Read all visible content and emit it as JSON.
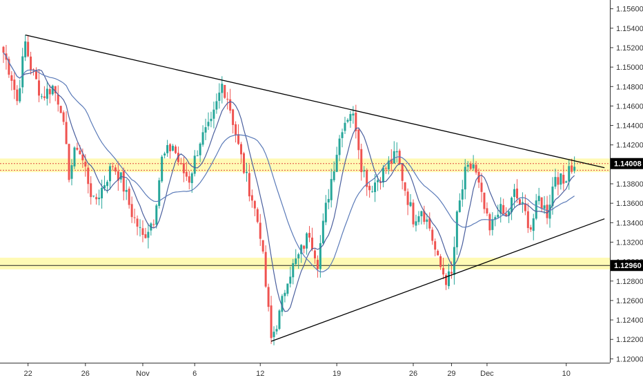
{
  "chart_data": {
    "type": "candlestick",
    "title": "",
    "xlabel": "",
    "ylabel": "",
    "ylim": [
      1.1196,
      1.1569
    ],
    "y_ticks": [
      "1.15600",
      "1.15400",
      "1.15200",
      "1.15000",
      "1.14800",
      "1.14600",
      "1.14400",
      "1.14200",
      "1.14000",
      "1.13800",
      "1.13600",
      "1.13400",
      "1.13200",
      "1.13000",
      "1.12800",
      "1.12600",
      "1.12400",
      "1.12200",
      "1.12000"
    ],
    "x_ticks": [
      {
        "label": "22",
        "index": 9
      },
      {
        "label": "26",
        "index": 30
      },
      {
        "label": "Nov",
        "index": 51
      },
      {
        "label": "6",
        "index": 70
      },
      {
        "label": "12",
        "index": 94
      },
      {
        "label": "19",
        "index": 122
      },
      {
        "label": "26",
        "index": 150
      },
      {
        "label": "29",
        "index": 164
      },
      {
        "label": "Dec",
        "index": 177
      },
      {
        "label": "10",
        "index": 206
      }
    ],
    "bar_count": 210,
    "up_color": "#26a69a",
    "down_color": "#ef5350",
    "ma_fast_color": "#4a5f9e",
    "ma_slow_color": "#5a7ab8",
    "trendline_color": "#000000",
    "zone_color": "#fff9a8",
    "price_labels": [
      {
        "label": "1.14008",
        "value": 1.14008,
        "zone": [
          1.1392,
          1.1406
        ]
      },
      {
        "label": "1.12960",
        "value": 1.1296,
        "zone": [
          1.1292,
          1.1304
        ]
      }
    ],
    "dotted_line_value": 1.1394,
    "trendlines": [
      {
        "name": "descending resistance",
        "points": [
          [
            8,
            1.1533
          ],
          [
            220,
            1.13965
          ]
        ]
      },
      {
        "name": "ascending support",
        "points": [
          [
            98,
            1.1218
          ],
          [
            220,
            1.1344
          ]
        ]
      }
    ],
    "anchors": [
      [
        0,
        1.1515
      ],
      [
        3,
        1.149
      ],
      [
        5,
        1.1465
      ],
      [
        8,
        1.1525
      ],
      [
        10,
        1.15
      ],
      [
        14,
        1.147
      ],
      [
        18,
        1.148
      ],
      [
        21,
        1.146
      ],
      [
        24,
        1.139
      ],
      [
        27,
        1.142
      ],
      [
        30,
        1.1395
      ],
      [
        33,
        1.136
      ],
      [
        36,
        1.1375
      ],
      [
        40,
        1.14
      ],
      [
        43,
        1.1385
      ],
      [
        47,
        1.135
      ],
      [
        51,
        1.1325
      ],
      [
        55,
        1.1345
      ],
      [
        58,
        1.1405
      ],
      [
        62,
        1.142
      ],
      [
        65,
        1.1395
      ],
      [
        68,
        1.1385
      ],
      [
        72,
        1.1425
      ],
      [
        76,
        1.144
      ],
      [
        80,
        1.1482
      ],
      [
        82,
        1.147
      ],
      [
        84,
        1.1445
      ],
      [
        86,
        1.1418
      ],
      [
        88,
        1.1395
      ],
      [
        91,
        1.1365
      ],
      [
        94,
        1.133
      ],
      [
        96,
        1.1275
      ],
      [
        98,
        1.122
      ],
      [
        101,
        1.1245
      ],
      [
        104,
        1.1285
      ],
      [
        108,
        1.1305
      ],
      [
        112,
        1.133
      ],
      [
        115,
        1.13
      ],
      [
        118,
        1.1355
      ],
      [
        121,
        1.14
      ],
      [
        124,
        1.144
      ],
      [
        127,
        1.1455
      ],
      [
        129,
        1.144
      ],
      [
        131,
        1.14
      ],
      [
        134,
        1.1375
      ],
      [
        137,
        1.1385
      ],
      [
        141,
        1.14
      ],
      [
        144,
        1.141
      ],
      [
        147,
        1.1375
      ],
      [
        150,
        1.1345
      ],
      [
        153,
        1.1355
      ],
      [
        156,
        1.1335
      ],
      [
        159,
        1.13
      ],
      [
        162,
        1.1282
      ],
      [
        164,
        1.1285
      ],
      [
        166,
        1.1345
      ],
      [
        169,
        1.139
      ],
      [
        172,
        1.14
      ],
      [
        175,
        1.1365
      ],
      [
        178,
        1.133
      ],
      [
        181,
        1.1355
      ],
      [
        184,
        1.1345
      ],
      [
        187,
        1.137
      ],
      [
        190,
        1.1355
      ],
      [
        193,
        1.1335
      ],
      [
        196,
        1.1365
      ],
      [
        199,
        1.135
      ],
      [
        202,
        1.139
      ],
      [
        205,
        1.138
      ],
      [
        207,
        1.14
      ],
      [
        209,
        1.1395
      ]
    ]
  }
}
